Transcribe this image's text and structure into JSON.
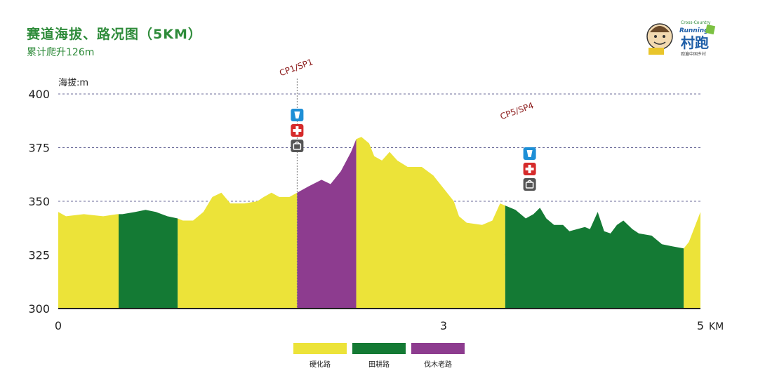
{
  "header": {
    "title": "赛道海拔、路况图（5KM）",
    "subtitle": "累计爬升126m",
    "logo_text_top": "Cross-Country",
    "logo_text_mid": "Running",
    "logo_text_main": "村跑",
    "logo_text_sub": "跑遍中国乡村"
  },
  "colors": {
    "hard_road": "#ece339",
    "field_road": "#147a34",
    "logging_road": "#8d3c8f",
    "title": "#2e8b3a",
    "checkpoint_label": "#8b1a1a"
  },
  "chart_data": {
    "type": "area",
    "ylabel": "海拔:m",
    "xunit": "KM",
    "ylim": [
      300,
      400
    ],
    "xlim": [
      0,
      5
    ],
    "yticks": [
      "300",
      "325",
      "350",
      "375",
      "400"
    ],
    "xticks": [
      {
        "value": 0,
        "label": "0"
      },
      {
        "value": 3,
        "label": "3"
      },
      {
        "value": 5,
        "label": "5"
      }
    ],
    "grid": "dashed-horizontal",
    "segments": [
      {
        "type": "hard_road",
        "x0": 0.0,
        "x1": 0.47
      },
      {
        "type": "field_road",
        "x0": 0.47,
        "x1": 0.93
      },
      {
        "type": "hard_road",
        "x0": 0.93,
        "x1": 1.86
      },
      {
        "type": "logging_road",
        "x0": 1.86,
        "x1": 2.32
      },
      {
        "type": "hard_road",
        "x0": 2.32,
        "x1": 3.48
      },
      {
        "type": "field_road",
        "x0": 3.48,
        "x1": 4.87
      },
      {
        "type": "hard_road",
        "x0": 4.87,
        "x1": 5.0
      }
    ],
    "profile": [
      [
        0.0,
        345
      ],
      [
        0.06,
        343
      ],
      [
        0.2,
        344
      ],
      [
        0.35,
        343
      ],
      [
        0.46,
        344
      ],
      [
        0.5,
        344
      ],
      [
        0.6,
        345
      ],
      [
        0.68,
        346
      ],
      [
        0.76,
        345
      ],
      [
        0.85,
        343
      ],
      [
        0.93,
        342
      ],
      [
        0.97,
        341
      ],
      [
        1.05,
        341
      ],
      [
        1.13,
        345
      ],
      [
        1.2,
        352
      ],
      [
        1.27,
        354
      ],
      [
        1.34,
        349
      ],
      [
        1.45,
        349
      ],
      [
        1.55,
        350
      ],
      [
        1.6,
        352
      ],
      [
        1.66,
        354
      ],
      [
        1.72,
        352
      ],
      [
        1.8,
        352
      ],
      [
        1.86,
        354
      ],
      [
        1.95,
        357
      ],
      [
        2.05,
        360
      ],
      [
        2.12,
        358
      ],
      [
        2.2,
        364
      ],
      [
        2.28,
        373
      ],
      [
        2.32,
        379
      ],
      [
        2.36,
        380
      ],
      [
        2.42,
        377
      ],
      [
        2.46,
        371
      ],
      [
        2.52,
        369
      ],
      [
        2.58,
        373
      ],
      [
        2.64,
        369
      ],
      [
        2.72,
        366
      ],
      [
        2.83,
        366
      ],
      [
        2.92,
        362
      ],
      [
        3.0,
        356
      ],
      [
        3.08,
        350
      ],
      [
        3.12,
        343
      ],
      [
        3.18,
        340
      ],
      [
        3.3,
        339
      ],
      [
        3.38,
        341
      ],
      [
        3.44,
        349
      ],
      [
        3.48,
        348
      ],
      [
        3.56,
        346
      ],
      [
        3.64,
        342
      ],
      [
        3.7,
        344
      ],
      [
        3.75,
        347
      ],
      [
        3.8,
        342
      ],
      [
        3.86,
        339
      ],
      [
        3.93,
        339
      ],
      [
        3.98,
        336
      ],
      [
        4.04,
        337
      ],
      [
        4.1,
        338
      ],
      [
        4.14,
        337
      ],
      [
        4.2,
        345
      ],
      [
        4.25,
        336
      ],
      [
        4.3,
        335
      ],
      [
        4.35,
        339
      ],
      [
        4.4,
        341
      ],
      [
        4.47,
        337
      ],
      [
        4.52,
        335
      ],
      [
        4.62,
        334
      ],
      [
        4.7,
        330
      ],
      [
        4.78,
        329
      ],
      [
        4.87,
        328
      ],
      [
        4.91,
        331
      ],
      [
        5.0,
        345
      ]
    ],
    "checkpoints": [
      {
        "label": "CP1/SP1",
        "x": 1.86,
        "icons": [
          "water-icon",
          "medical-cross-icon",
          "storage-icon"
        ]
      },
      {
        "label": "CP5/SP4",
        "x": 3.48,
        "icons": [
          "water-icon",
          "medical-cross-icon",
          "storage-icon"
        ]
      }
    ],
    "legend": [
      {
        "key": "hard_road",
        "label": "硬化路"
      },
      {
        "key": "field_road",
        "label": "田耕路"
      },
      {
        "key": "logging_road",
        "label": "伐木老路"
      }
    ]
  }
}
